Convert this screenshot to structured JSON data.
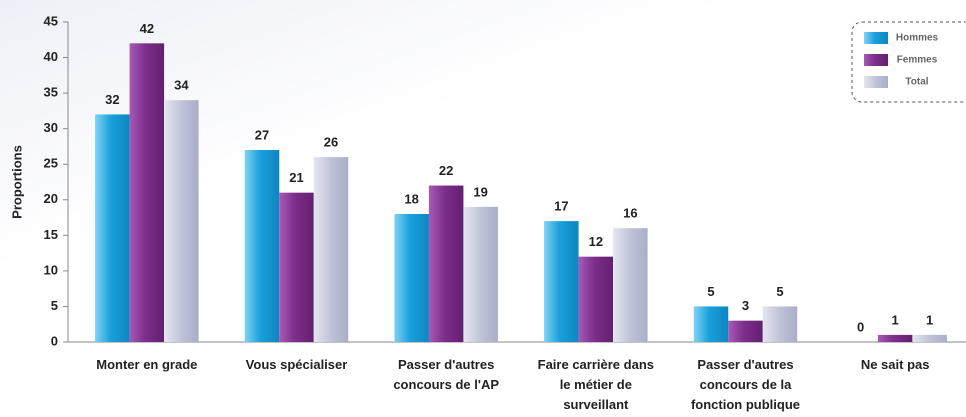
{
  "chart_data": {
    "type": "bar",
    "y_label": "Proportions",
    "categories": [
      "Monter en grade",
      "Vous spécialiser",
      "Passer d'autres concours de l'AP",
      "Faire carrière dans le métier de surveillant",
      "Passer d'autres concours de la fonction publique",
      "Ne sait pas"
    ],
    "series": [
      {
        "name": "Hommes",
        "color": "#1aa0dc",
        "values": [
          32,
          27,
          18,
          17,
          5,
          0
        ]
      },
      {
        "name": "Femmes",
        "color": "#7d2e8c",
        "values": [
          42,
          21,
          22,
          12,
          3,
          1
        ]
      },
      {
        "name": "Total",
        "color": "#bfc3d8",
        "values": [
          34,
          26,
          19,
          16,
          5,
          1
        ]
      }
    ],
    "ylim": [
      0,
      45
    ],
    "yticks": [
      0,
      5,
      10,
      15,
      20,
      25,
      30,
      35,
      40,
      45
    ],
    "grid": false,
    "legend": "top-right"
  }
}
